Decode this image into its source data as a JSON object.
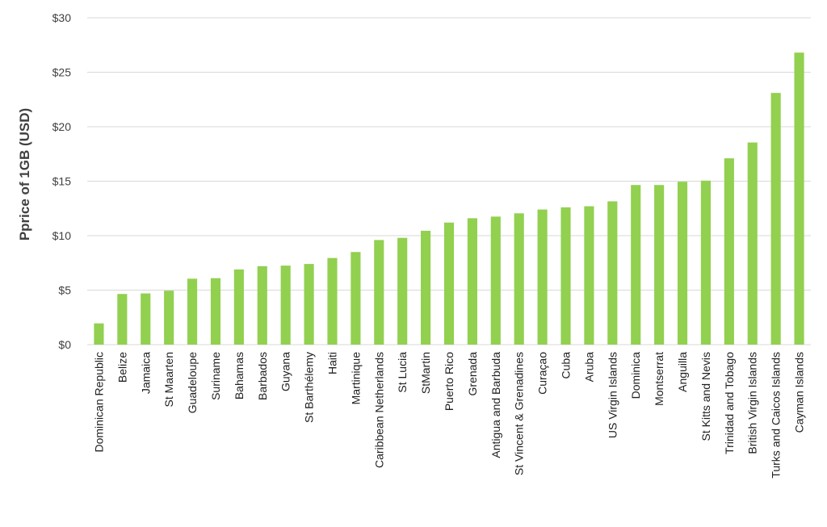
{
  "chart_data": {
    "type": "bar",
    "ylabel": "Pprice of 1GB (USD)",
    "xlabel": "",
    "ylim": [
      0,
      30
    ],
    "yticks": [
      0,
      5,
      10,
      15,
      20,
      25,
      30
    ],
    "ytick_labels": [
      "$0",
      "$5",
      "$10",
      "$15",
      "$20",
      "$25",
      "$30"
    ],
    "grid": true,
    "bar_color": "#92d050",
    "categories": [
      "Dominican Republic",
      "Belize",
      "Jamaica",
      "St Maarten",
      "Guadeloupe",
      "Suriname",
      "Bahamas",
      "Barbados",
      "Guyana",
      "St Barthélemy",
      "Haiti",
      "Martinique",
      "Caribbean Netherlands",
      "St Lucia",
      "StMartin",
      "Puerto Rico",
      "Grenada",
      "Antigua and Barbuda",
      "St Vincent & Grenadines",
      "Curaçao",
      "Cuba",
      "Aruba",
      "US Virgin Islands",
      "Dominica",
      "Montserrat",
      "Anguilla",
      "St Kitts and Nevis",
      "Trinidad and Tobago",
      "British Virgin Islands",
      "Turks and Caicos Islands",
      "Cayman Islands"
    ],
    "values": [
      1.95,
      4.65,
      4.7,
      4.95,
      6.05,
      6.1,
      6.9,
      7.2,
      7.25,
      7.4,
      7.95,
      8.5,
      9.6,
      9.8,
      10.45,
      11.2,
      11.6,
      11.75,
      12.05,
      12.4,
      12.6,
      12.7,
      13.15,
      14.65,
      14.65,
      14.95,
      15.05,
      17.1,
      18.55,
      23.1,
      26.8
    ]
  }
}
